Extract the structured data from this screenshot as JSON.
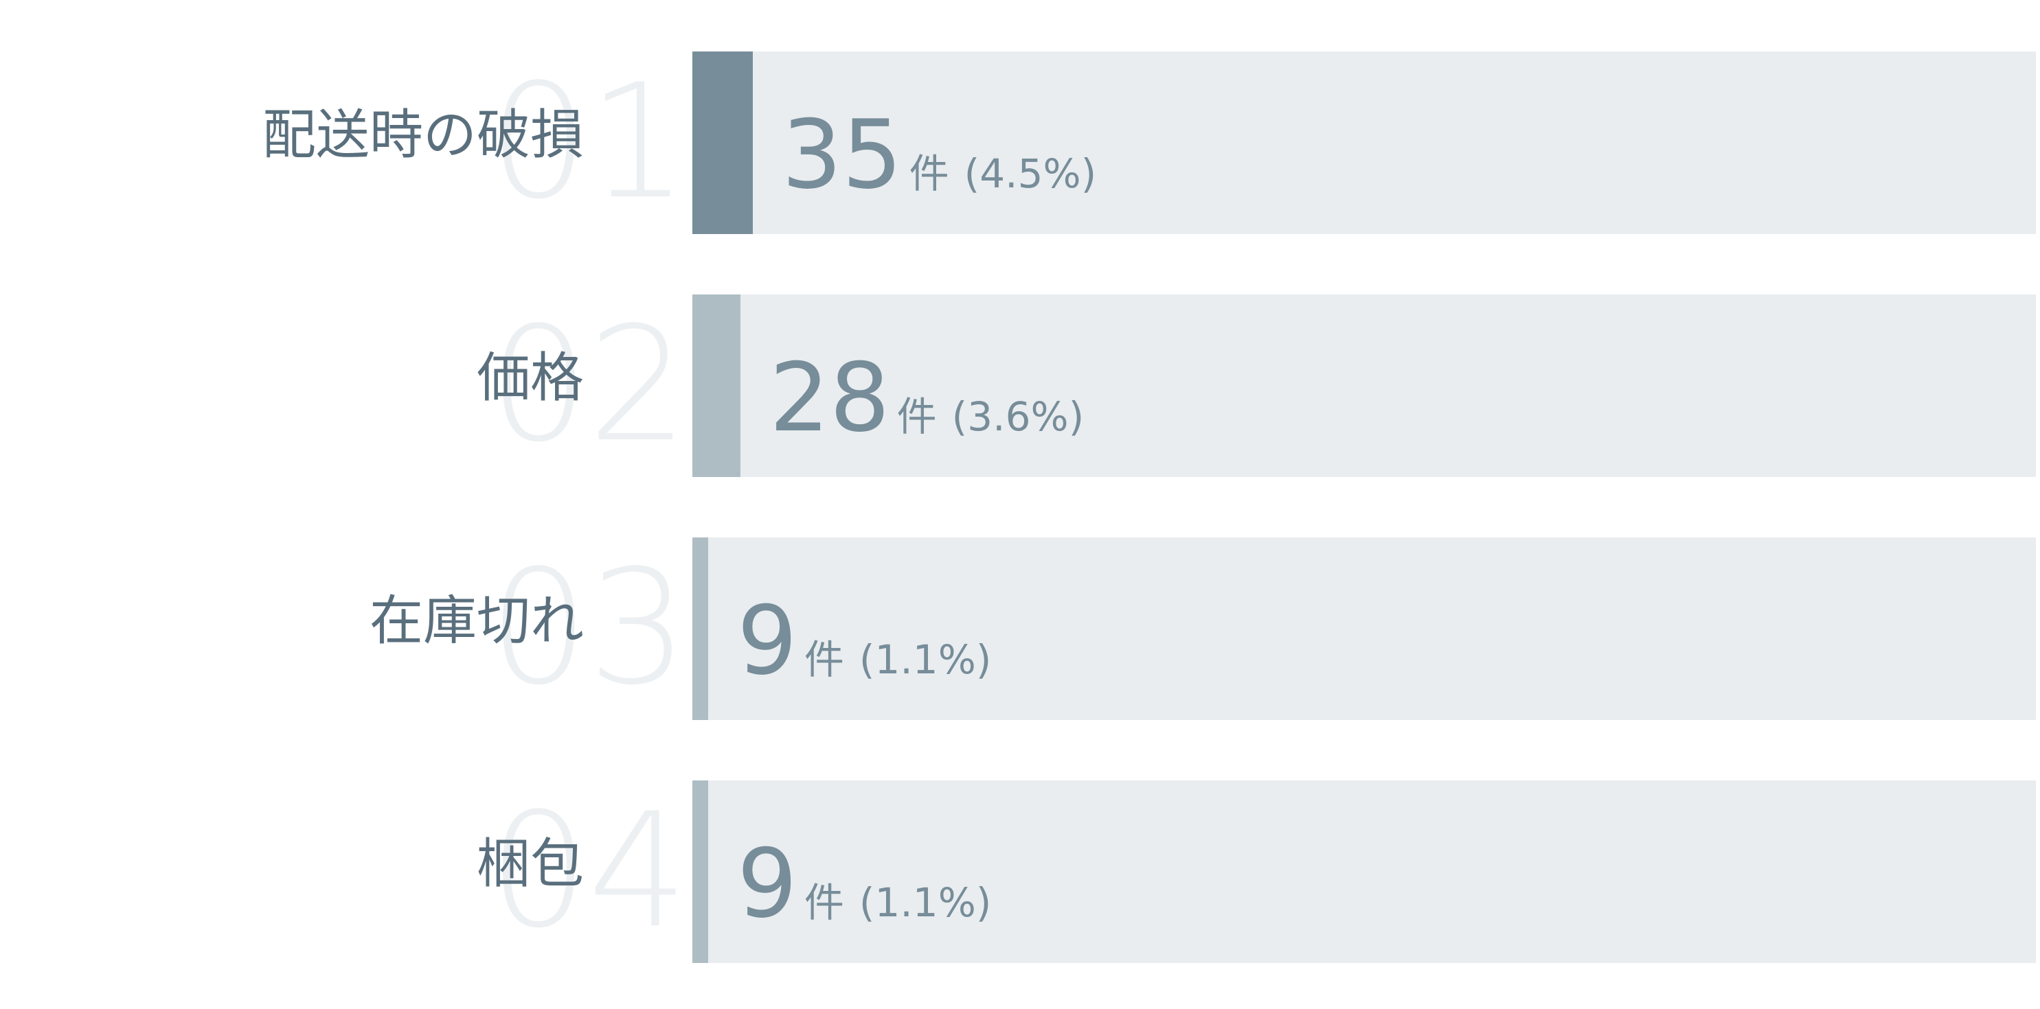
{
  "chart_data": {
    "type": "bar",
    "orientation": "horizontal",
    "categories": [
      "配送時の破損",
      "価格",
      "在庫切れ",
      "梱包"
    ],
    "ranks": [
      "01",
      "02",
      "03",
      "04"
    ],
    "values": [
      35,
      28,
      9,
      9
    ],
    "unit": "件",
    "percentages": [
      "(4.5%)",
      "(3.6%)",
      "(1.1%)",
      "(1.1%)"
    ],
    "value_labels": [
      "35",
      "28",
      "9",
      "9"
    ],
    "bar_max": 780,
    "colors": {
      "top": "#778d99",
      "other": "#aebdc4",
      "track": "#e9edf0",
      "rank_text": "#edf0f2",
      "label_text": "#5a6f7d",
      "value_text": "#778d99"
    },
    "grid": false,
    "legend": "none"
  }
}
